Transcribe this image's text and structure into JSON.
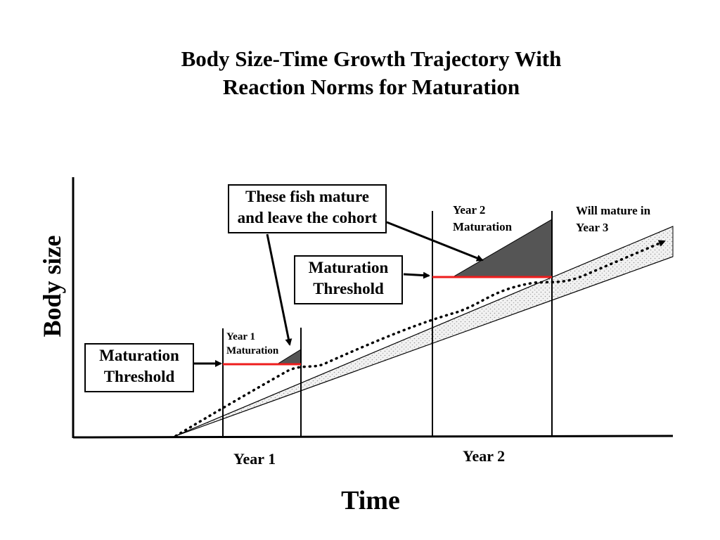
{
  "title": {
    "line1": "Body Size-Time Growth Trajectory With",
    "line2": "Reaction Norms for Maturation"
  },
  "axes": {
    "x_title": "Time",
    "y_title": "Body size",
    "x_ticks": [
      "Year 1",
      "Year 2"
    ]
  },
  "callouts": {
    "mature_leave": {
      "line1": "These fish mature",
      "line2": "and leave the cohort"
    },
    "threshold_year1": {
      "line1": "Maturation",
      "line2": "Threshold"
    },
    "threshold_year2": {
      "line1": "Maturation",
      "line2": "Threshold"
    }
  },
  "labels": {
    "year1_maturation": {
      "line1": "Year 1",
      "line2": "Maturation"
    },
    "year2_maturation": {
      "line1": "Year 2",
      "line2": "Maturation"
    },
    "year3_maturation": {
      "line1": "Will mature in",
      "line2": "Year 3"
    }
  },
  "colors": {
    "threshold_line": "#ee1c1c",
    "matured_region": "#555555",
    "growth_band": "#ececec",
    "outline": "#000000"
  }
}
